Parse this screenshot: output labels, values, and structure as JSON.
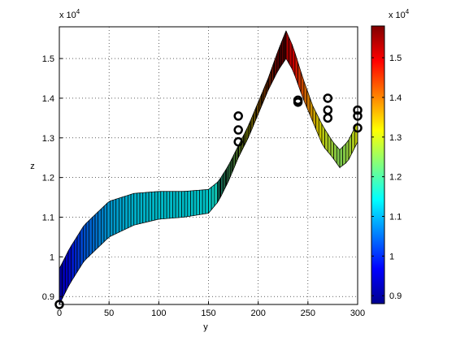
{
  "chart_data": {
    "type": "surface",
    "xlabel": "y",
    "ylabel": "z",
    "xlim": [
      0,
      300
    ],
    "ylim": [
      8800,
      15800
    ],
    "x_ticks": [
      "0",
      "50",
      "100",
      "150",
      "200",
      "250",
      "300"
    ],
    "x_tick_values": [
      0,
      50,
      100,
      150,
      200,
      250,
      300
    ],
    "y_ticks": [
      "0.9",
      "1",
      "1.1",
      "1.2",
      "1.3",
      "1.4",
      "1.5"
    ],
    "y_tick_values": [
      9000,
      10000,
      11000,
      12000,
      13000,
      14000,
      15000
    ],
    "y_exponent": "x 10",
    "y_exponent_power": "4",
    "grid": true,
    "surface_upper_edge": {
      "x": [
        0,
        10,
        25,
        50,
        75,
        100,
        125,
        150,
        160,
        170,
        180,
        190,
        200,
        210,
        220,
        228,
        235,
        245,
        255,
        265,
        275,
        282,
        290,
        300
      ],
      "y": [
        9700,
        10200,
        10800,
        11400,
        11600,
        11650,
        11650,
        11700,
        11900,
        12300,
        12800,
        13300,
        13900,
        14500,
        15200,
        15700,
        15300,
        14500,
        13800,
        13300,
        12900,
        12700,
        12900,
        13400
      ]
    },
    "surface_lower_edge": {
      "x": [
        0,
        10,
        25,
        50,
        75,
        100,
        125,
        150,
        160,
        170,
        180,
        190,
        200,
        210,
        220,
        228,
        235,
        245,
        255,
        265,
        275,
        282,
        290,
        300
      ],
      "y": [
        8800,
        9300,
        9900,
        10500,
        10800,
        10950,
        11000,
        11100,
        11400,
        11900,
        12500,
        13000,
        13600,
        14200,
        14700,
        15000,
        14700,
        14000,
        13400,
        12800,
        12500,
        12250,
        12400,
        12900
      ]
    },
    "markers": {
      "x": [
        0,
        180,
        180,
        180,
        240,
        240,
        270,
        270,
        270,
        300,
        300,
        300
      ],
      "y": [
        8800,
        13550,
        13200,
        12900,
        13950,
        13900,
        14000,
        13700,
        13500,
        13700,
        13550,
        13250
      ]
    },
    "colorbar": {
      "range": [
        8800,
        15800
      ],
      "ticks": [
        "0.9",
        "1",
        "1.1",
        "1.2",
        "1.3",
        "1.4",
        "1.5"
      ],
      "tick_values": [
        9000,
        10000,
        11000,
        12000,
        13000,
        14000,
        15000
      ],
      "exponent": "x 10",
      "exponent_power": "4",
      "colormap": "jet"
    }
  }
}
